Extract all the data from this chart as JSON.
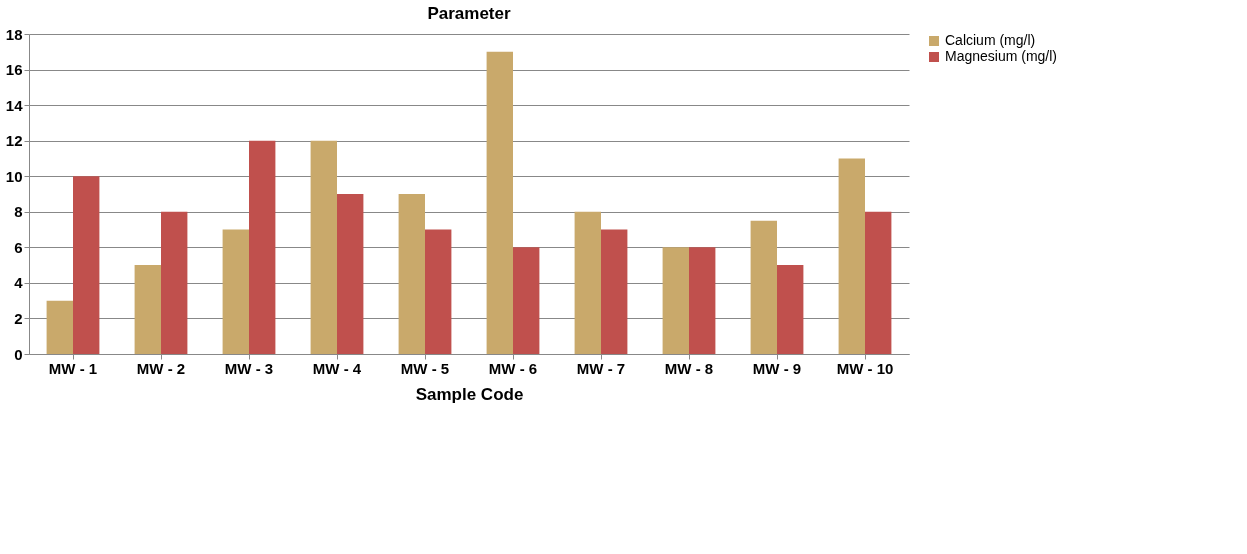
{
  "chart_data": {
    "type": "bar",
    "title": "Parameter",
    "xlabel": "Sample Code",
    "categories": [
      "MW - 1",
      "MW - 2",
      "MW - 3",
      "MW - 4",
      "MW - 5",
      "MW - 6",
      "MW - 7",
      "MW - 8",
      "MW - 9",
      "MW - 10"
    ],
    "series": [
      {
        "name": "Calcium (mg/l)",
        "color": "#c9a96b",
        "values": [
          3,
          5,
          7,
          12,
          9,
          17,
          8,
          6,
          7.5,
          11
        ]
      },
      {
        "name": "Magnesium (mg/l)",
        "color": "#c0504d",
        "values": [
          10,
          8,
          12,
          9,
          7,
          6,
          7,
          6,
          5,
          8
        ]
      }
    ],
    "ylim": [
      0,
      18
    ],
    "yticks": [
      0,
      2,
      4,
      6,
      8,
      10,
      12,
      14,
      16,
      18
    ],
    "grid": "y",
    "legend": "right"
  }
}
